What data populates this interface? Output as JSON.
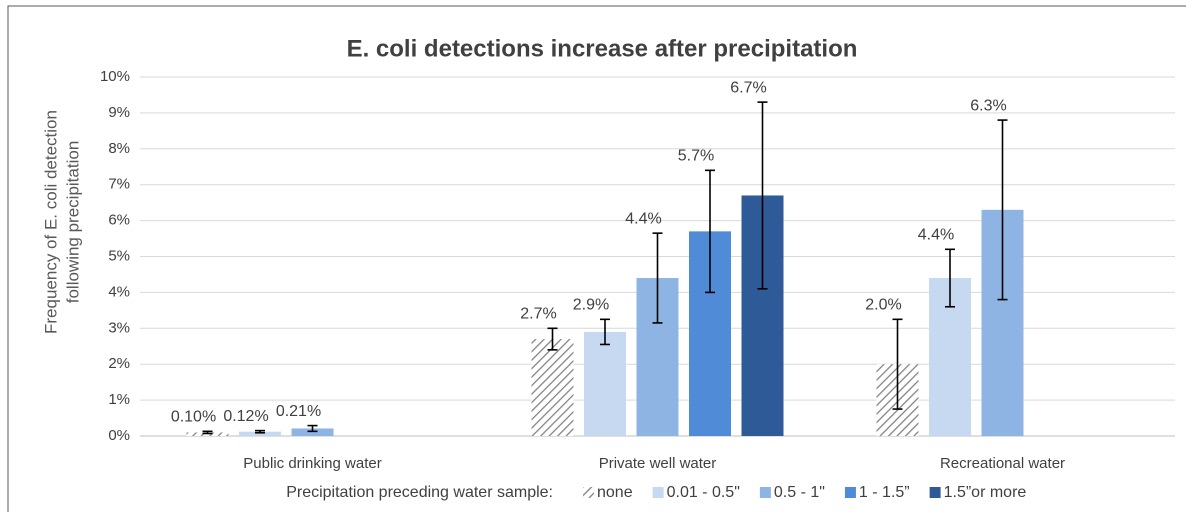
{
  "chart_data": {
    "type": "bar",
    "title": "E. coli detections increase after precipitation",
    "y_label": [
      "Frequency of E. coli detection",
      "following precipitation"
    ],
    "legend_title": "Precipitation preceding water sample:",
    "legend_position": "bottom",
    "grid": true,
    "categories": [
      "Public drinking water",
      "Private well water",
      "Recreational water"
    ],
    "ylim": [
      0,
      10
    ],
    "yticks": [
      {
        "value": 0,
        "label": "0%"
      },
      {
        "value": 1,
        "label": "1%"
      },
      {
        "value": 2,
        "label": "2%"
      },
      {
        "value": 3,
        "label": "3%"
      },
      {
        "value": 4,
        "label": "4%"
      },
      {
        "value": 5,
        "label": "5%"
      },
      {
        "value": 6,
        "label": "6%"
      },
      {
        "value": 7,
        "label": "7%"
      },
      {
        "value": 8,
        "label": "8%"
      },
      {
        "value": 9,
        "label": "9%"
      },
      {
        "value": 10,
        "label": "10%"
      }
    ],
    "series": [
      {
        "name": "none",
        "color": "#7f7f7f",
        "hatch": true,
        "values": [
          0.1,
          2.7,
          2.0
        ],
        "value_labels": [
          "0.10%",
          "2.7%",
          "2.0%"
        ],
        "errors": [
          0.03,
          0.3,
          1.25
        ]
      },
      {
        "name": "0.01 - 0.5\"",
        "color": "#c6d9f0",
        "values": [
          0.12,
          2.9,
          4.4
        ],
        "value_labels": [
          "0.12%",
          "2.9%",
          "4.4%"
        ],
        "errors": [
          0.03,
          0.35,
          0.8
        ]
      },
      {
        "name": "0.5 - 1\"",
        "color": "#8eb4e3",
        "values": [
          0.21,
          4.4,
          6.3
        ],
        "value_labels": [
          "0.21%",
          "4.4%",
          "6.3%"
        ],
        "errors": [
          0.08,
          1.25,
          2.5
        ]
      },
      {
        "name": "1 - 1.5”",
        "color": "#4f8bd6",
        "values": [
          null,
          5.7,
          null
        ],
        "value_labels": [
          null,
          "5.7%",
          null
        ],
        "errors": [
          null,
          1.7,
          null
        ]
      },
      {
        "name": "1.5”or more",
        "color": "#2e5b97",
        "values": [
          null,
          6.7,
          null
        ],
        "value_labels": [
          null,
          "6.7%",
          null
        ],
        "errors": [
          null,
          2.6,
          null
        ]
      }
    ]
  }
}
